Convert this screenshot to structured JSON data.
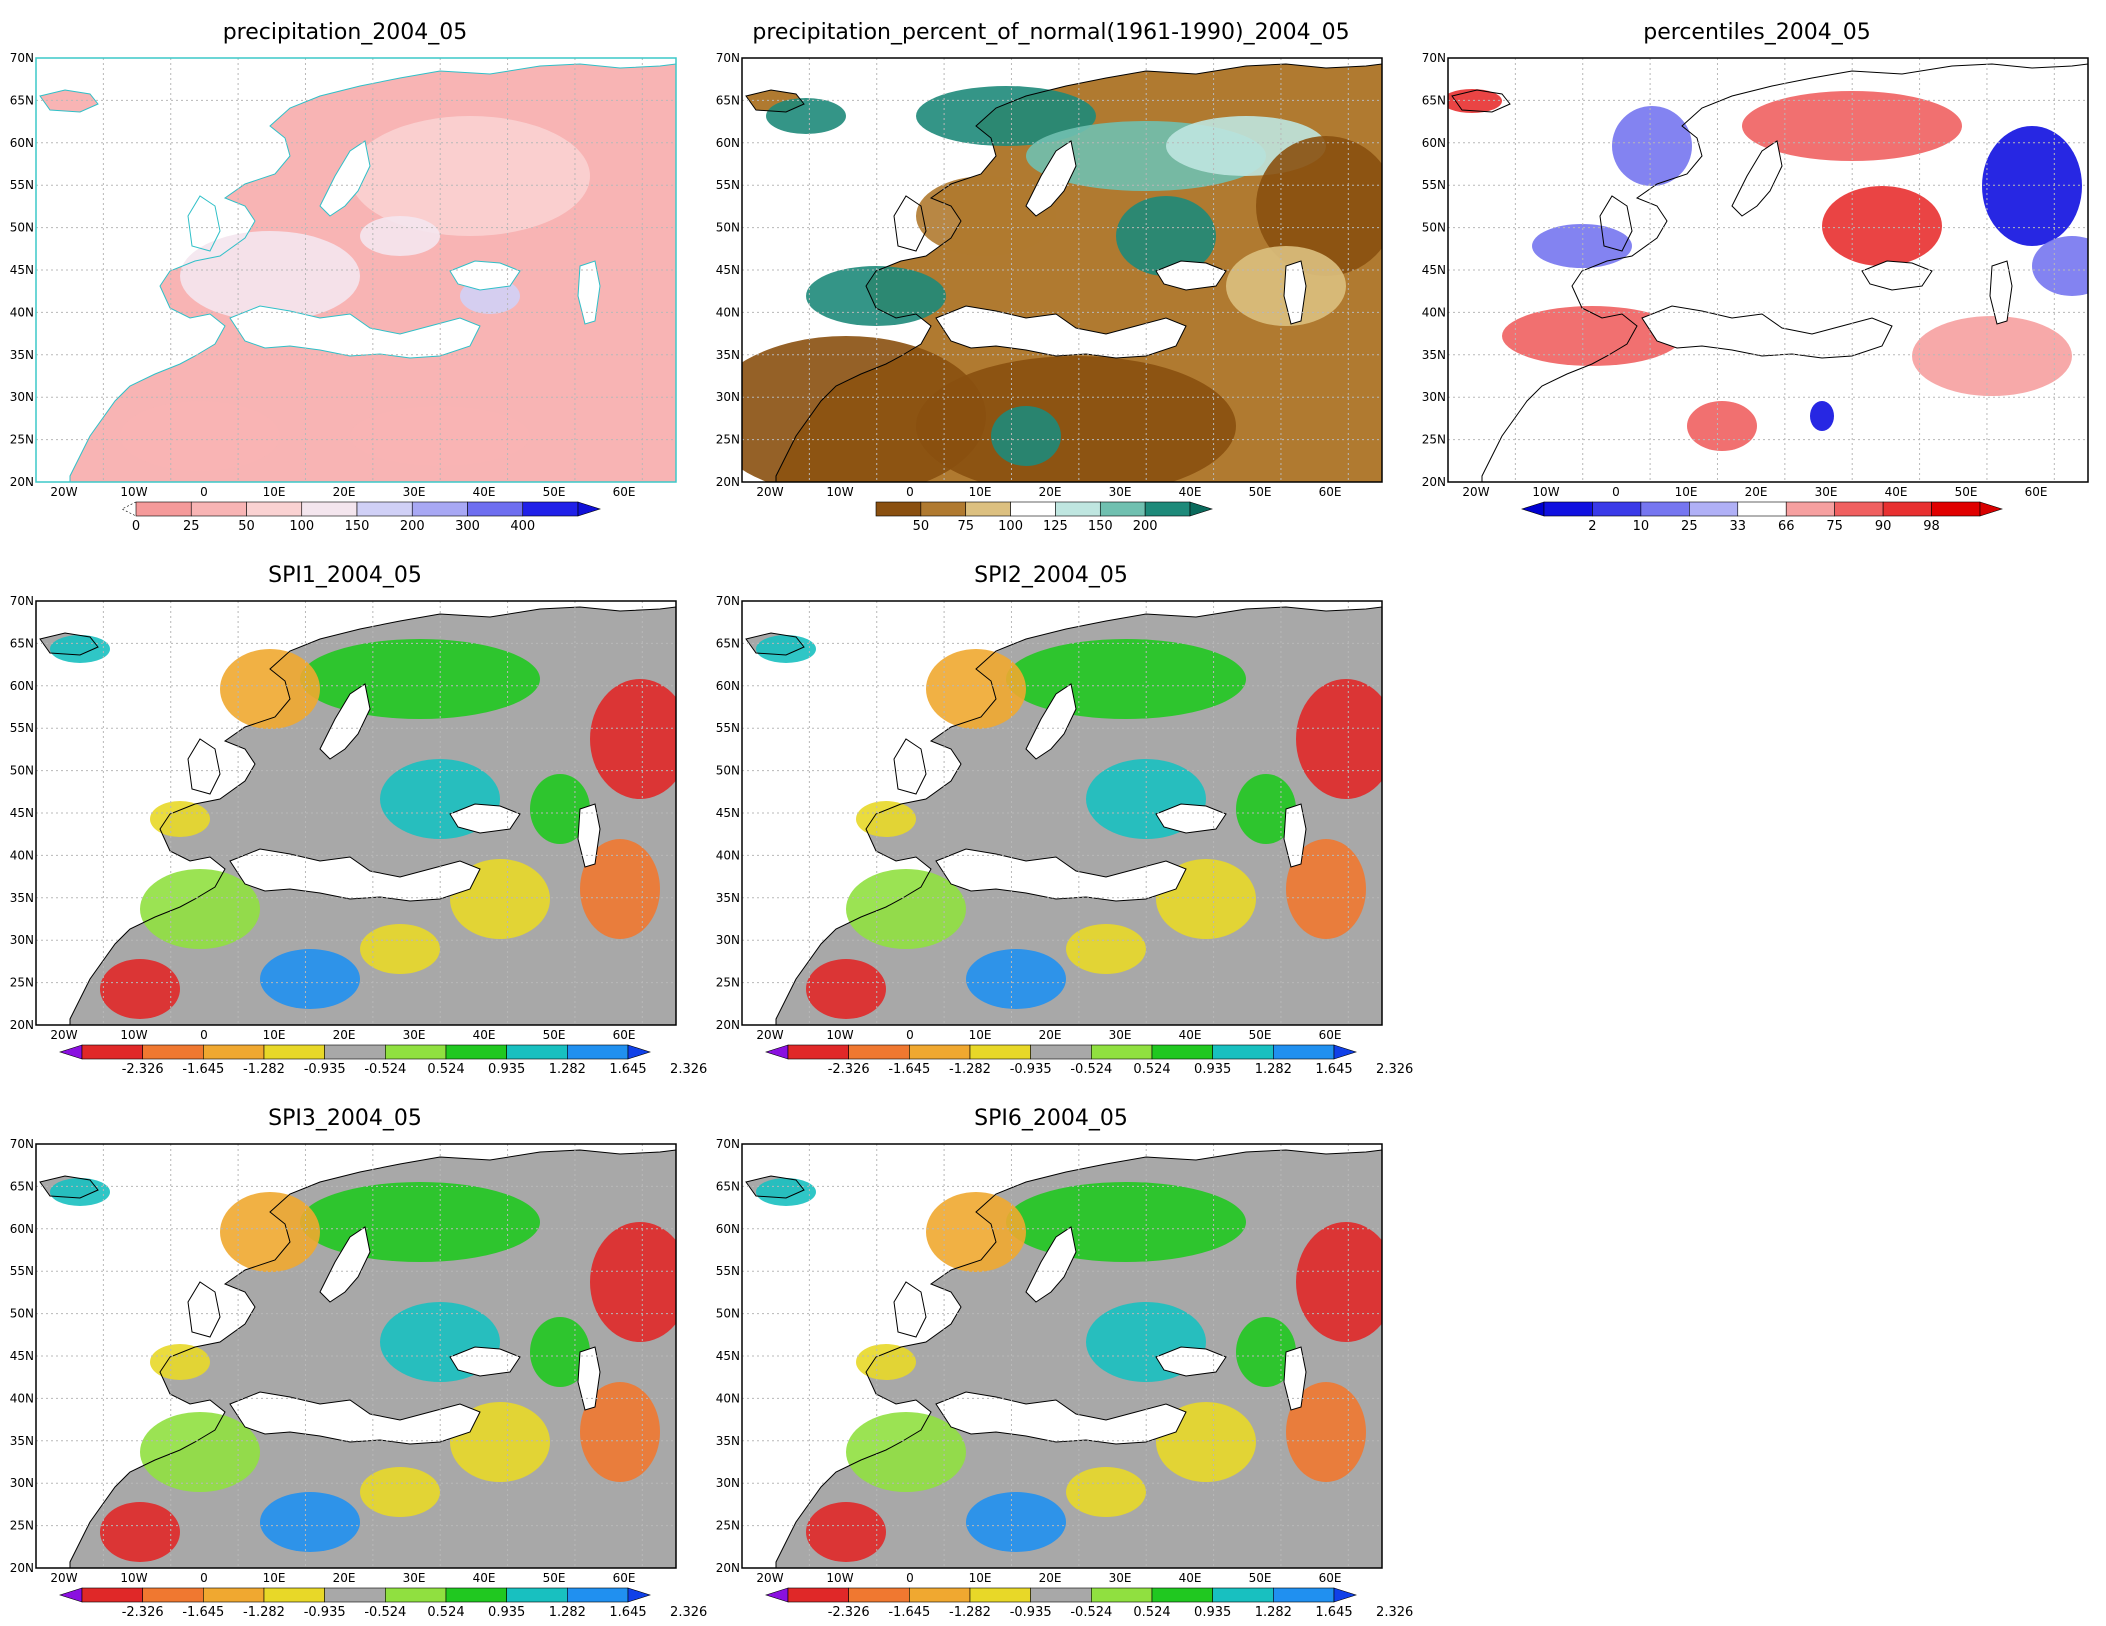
{
  "panels": [
    {
      "id": "p1",
      "title": "precipitation_2004_05",
      "border": "#3cc8c8",
      "scheme": "precip"
    },
    {
      "id": "p2",
      "title": "precipitation_percent_of_normal(1961-1990)_2004_05",
      "border": "#000000",
      "scheme": "pct"
    },
    {
      "id": "p3",
      "title": "percentiles_2004_05",
      "border": "#000000",
      "scheme": "perc"
    },
    {
      "id": "p4",
      "title": "SPI1_2004_05",
      "border": "#000000",
      "scheme": "spi"
    },
    {
      "id": "p5",
      "title": "SPI2_2004_05",
      "border": "#000000",
      "scheme": "spi"
    },
    {
      "id": "p6",
      "title": "SPI3_2004_05",
      "border": "#000000",
      "scheme": "spi"
    },
    {
      "id": "p7",
      "title": "SPI6_2004_05",
      "border": "#000000",
      "scheme": "spi"
    }
  ],
  "map": {
    "lat_labels": [
      "70N",
      "65N",
      "60N",
      "55N",
      "50N",
      "45N",
      "40N",
      "35N",
      "30N",
      "25N",
      "20N"
    ],
    "lon_labels": [
      "20W",
      "10W",
      "0",
      "10E",
      "20E",
      "30E",
      "40E",
      "50E",
      "60E"
    ]
  },
  "colorbars": {
    "precip": {
      "labels": [
        "0",
        "25",
        "50",
        "100",
        "150",
        "200",
        "300",
        "400"
      ],
      "colors": [
        "#f59a9a",
        "#f8b4b4",
        "#fad2d2",
        "#f4e6ee",
        "#d0d0f6",
        "#a8a8f4",
        "#6e6ef0",
        "#2020e8"
      ],
      "arrow_color": "#1010d8"
    },
    "pct": {
      "labels": [
        "50",
        "75",
        "100",
        "125",
        "150",
        "200"
      ],
      "colors": [
        "#8a5010",
        "#b07a30",
        "#dcc080",
        "#ffffff",
        "#bfe6e0",
        "#70c0b0",
        "#1e8a7a"
      ],
      "arrow_color": "#0a6a5c"
    },
    "perc": {
      "labels": [
        "2",
        "10",
        "25",
        "33",
        "66",
        "75",
        "90",
        "98"
      ],
      "colors": [
        "#1010e0",
        "#3a3ae8",
        "#7676f0",
        "#b0b0f6",
        "#ffffff",
        "#f6a0a0",
        "#f06060",
        "#e83030",
        "#e00000"
      ],
      "arrow_left": "#0000d0",
      "arrow_right": "#d80000"
    },
    "spi": {
      "labels": [
        "-2.326",
        "-1.645",
        "-1.282",
        "-0.935",
        "-0.524",
        "0.524",
        "0.935",
        "1.282",
        "1.645",
        "2.326"
      ],
      "colors": [
        "#e02828",
        "#f07830",
        "#f0a830",
        "#e8d828",
        "#a8a8a8",
        "#90e040",
        "#20c820",
        "#18c0c0",
        "#2090f0"
      ],
      "arrow_left": "#8a10e0",
      "arrow_right": "#1040e8"
    }
  }
}
